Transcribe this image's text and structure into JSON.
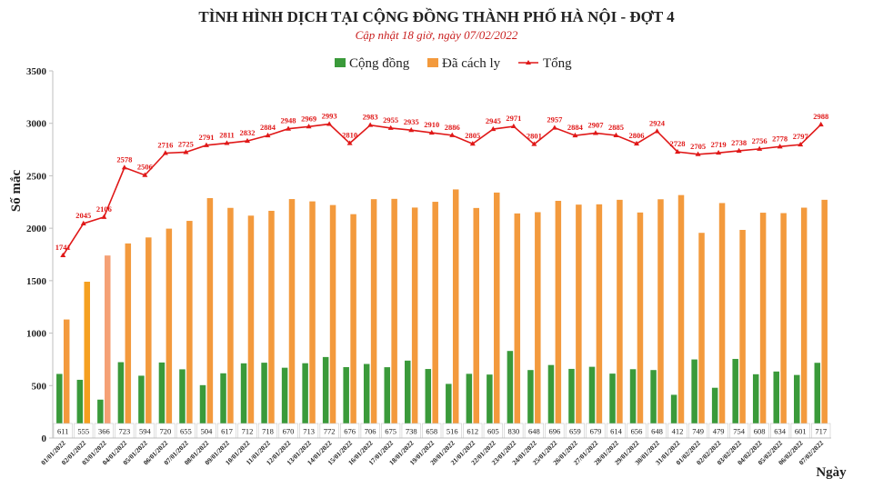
{
  "chart_data": {
    "type": "bar",
    "title": "TÌNH HÌNH DỊCH TẠI CỘNG ĐỒNG THÀNH PHỐ HÀ NỘI - ĐỢT 4",
    "subtitle": "Cập nhật 18 giờ, ngày  07/02/2022",
    "xlabel": "Ngày",
    "ylabel": "Số mắc",
    "ylim": [
      0,
      3500
    ],
    "yticks": [
      "0",
      "500",
      "1000",
      "1500",
      "2000",
      "2500",
      "3000",
      "3500"
    ],
    "legend_position": "top-center",
    "grid": false,
    "categories": [
      "01/01/2022",
      "02/01/2022",
      "03/01/2022",
      "04/01/2022",
      "05/01/2022",
      "06/01/2022",
      "07/01/2022",
      "08/01/2022",
      "09/01/2022",
      "10/01/2022",
      "11/01/2022",
      "12/01/2022",
      "13/01/2022",
      "14/01/2022",
      "15/01/2022",
      "16/01/2022",
      "17/01/2022",
      "18/01/2022",
      "19/01/2022",
      "20/01/2022",
      "21/01/2022",
      "22/01/2022",
      "23/01/2022",
      "24/01/2022",
      "25/01/2022",
      "26/01/2022",
      "27/01/2022",
      "28/01/2022",
      "29/01/2022",
      "30/01/2022",
      "31/01/2022",
      "01/02/2022",
      "02/02/2022",
      "03/02/2022",
      "04/02/2022",
      "05/02/2022",
      "06/02/2022",
      "07/02/2022"
    ],
    "series": [
      {
        "name": "Cộng đồng",
        "type": "bar",
        "color": "#3a9a3a",
        "values": [
          611,
          555,
          366,
          723,
          594,
          720,
          655,
          504,
          617,
          712,
          718,
          670,
          713,
          772,
          676,
          706,
          675,
          738,
          658,
          516,
          612,
          605,
          830,
          648,
          696,
          659,
          679,
          614,
          656,
          648,
          412,
          749,
          479,
          754,
          608,
          634,
          601,
          717
        ]
      },
      {
        "name": "Đã cách ly",
        "type": "bar",
        "color": "#f39a3d",
        "special_colors": {
          "1": "#f5a020",
          "2": "#f5a075"
        },
        "values": [
          1130,
          1490,
          1740,
          1855,
          1912,
          1996,
          2070,
          2287,
          2194,
          2120,
          2166,
          2278,
          2256,
          2221,
          2134,
          2277,
          2280,
          2197,
          2252,
          2370,
          2193,
          2340,
          2141,
          2153,
          2261,
          2225,
          2228,
          2271,
          2150,
          2276,
          2316,
          1956,
          2240,
          1984,
          2148,
          2144,
          2196,
          2271
        ]
      },
      {
        "name": "Tổng",
        "type": "line",
        "color": "#e01818",
        "values": [
          1741,
          2045,
          2106,
          2578,
          2506,
          2716,
          2725,
          2791,
          2811,
          2832,
          2884,
          2948,
          2969,
          2993,
          2810,
          2983,
          2955,
          2935,
          2910,
          2886,
          2805,
          2945,
          2971,
          2801,
          2957,
          2884,
          2907,
          2885,
          2806,
          2924,
          2728,
          2705,
          2719,
          2738,
          2756,
          2778,
          2797,
          2988
        ]
      }
    ],
    "table_row": [
      "611",
      "555",
      "366",
      "723",
      "594",
      "720",
      "655",
      "504",
      "617",
      "712",
      "718",
      "670",
      "713",
      "772",
      "676",
      "706",
      "675",
      "738",
      "658",
      "516",
      "612",
      "605",
      "830",
      "648",
      "696",
      "659",
      "679",
      "614",
      "656",
      "648",
      "412",
      "749",
      "479",
      "754",
      "608",
      "634",
      "601",
      "717"
    ]
  }
}
